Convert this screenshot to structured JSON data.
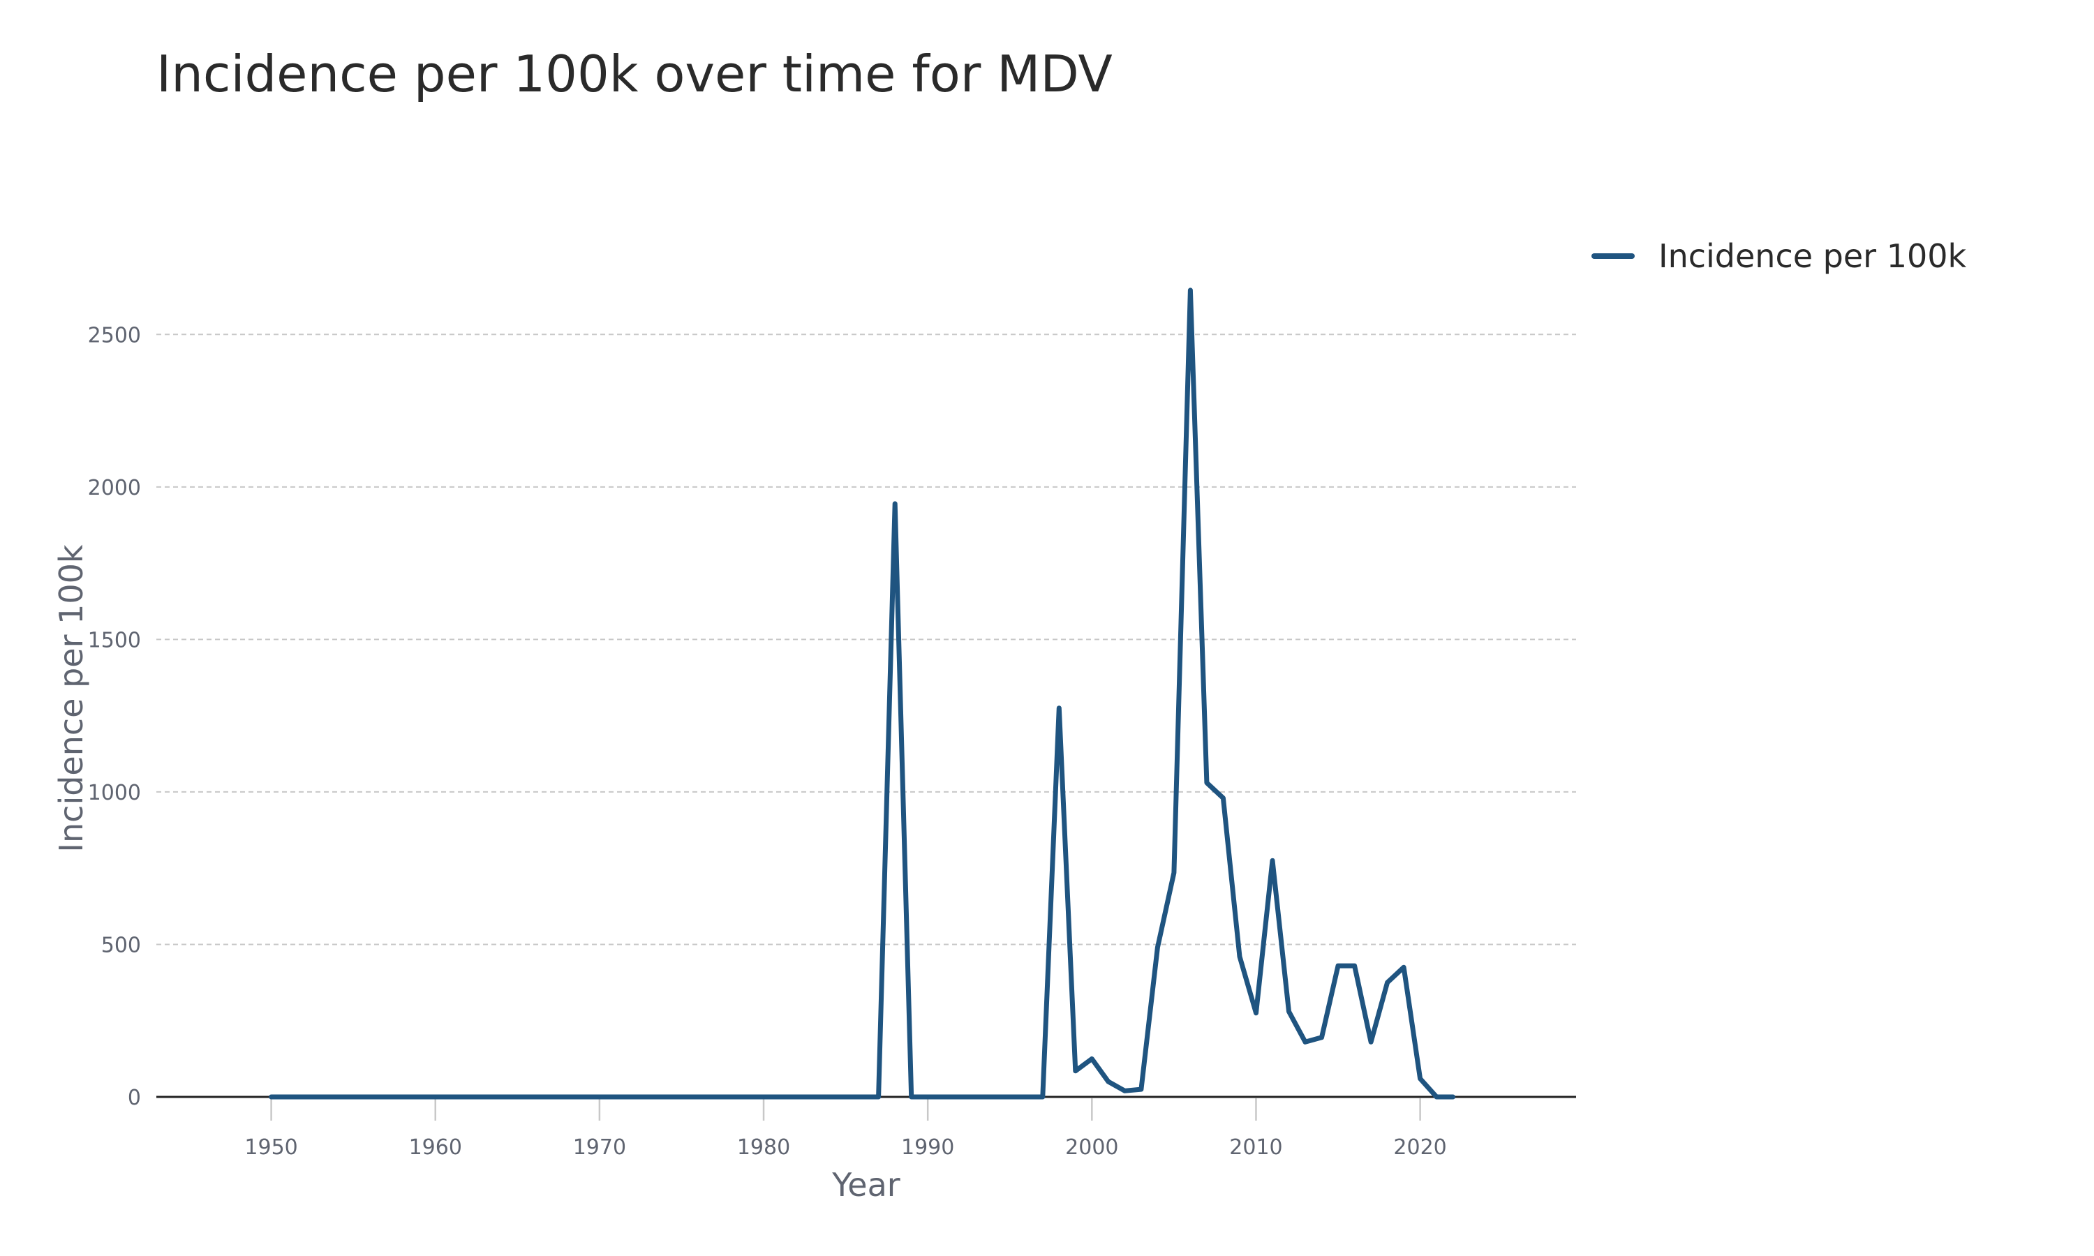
{
  "page": {
    "title": "Incidence per 100k over time for MDV"
  },
  "legend": {
    "label": "Incidence per 100k"
  },
  "colors": {
    "series": "#1f5480",
    "grid": "#c8c8c8",
    "axis": "#222222",
    "tick_text": "#5f6470"
  },
  "chart_data": {
    "type": "line",
    "title": "Incidence per 100k over time for MDV",
    "xlabel": "Year",
    "ylabel": "Incidence per 100k",
    "xlim": [
      1943,
      2029.5
    ],
    "ylim": [
      0,
      2750
    ],
    "x_ticks": [
      1950,
      1960,
      1970,
      1980,
      1990,
      2000,
      2010,
      2020
    ],
    "y_ticks": [
      0,
      500,
      1000,
      1500,
      2000,
      2500
    ],
    "grid": true,
    "legend_position": "top-right",
    "series": [
      {
        "name": "Incidence per 100k",
        "color": "#1f5480",
        "x": [
          1950,
          1951,
          1952,
          1953,
          1954,
          1955,
          1956,
          1957,
          1958,
          1959,
          1960,
          1961,
          1962,
          1963,
          1964,
          1965,
          1966,
          1967,
          1968,
          1969,
          1970,
          1971,
          1972,
          1973,
          1974,
          1975,
          1976,
          1977,
          1978,
          1979,
          1980,
          1981,
          1982,
          1983,
          1984,
          1985,
          1986,
          1987,
          1988,
          1989,
          1990,
          1991,
          1992,
          1993,
          1994,
          1995,
          1996,
          1997,
          1998,
          1999,
          2000,
          2001,
          2002,
          2003,
          2004,
          2005,
          2006,
          2007,
          2008,
          2009,
          2010,
          2011,
          2012,
          2013,
          2014,
          2015,
          2016,
          2017,
          2018,
          2019,
          2020,
          2021,
          2022
        ],
        "values": [
          0,
          0,
          0,
          0,
          0,
          0,
          0,
          0,
          0,
          0,
          0,
          0,
          0,
          0,
          0,
          0,
          0,
          0,
          0,
          0,
          0,
          0,
          0,
          0,
          0,
          0,
          0,
          0,
          0,
          0,
          0,
          0,
          0,
          0,
          0,
          0,
          0,
          0,
          1945,
          0,
          0,
          0,
          0,
          0,
          0,
          0,
          0,
          0,
          1275,
          85,
          125,
          50,
          20,
          25,
          490,
          735,
          2645,
          1030,
          980,
          460,
          275,
          775,
          280,
          180,
          195,
          430,
          430,
          180,
          375,
          425,
          60,
          0,
          0
        ]
      }
    ]
  }
}
